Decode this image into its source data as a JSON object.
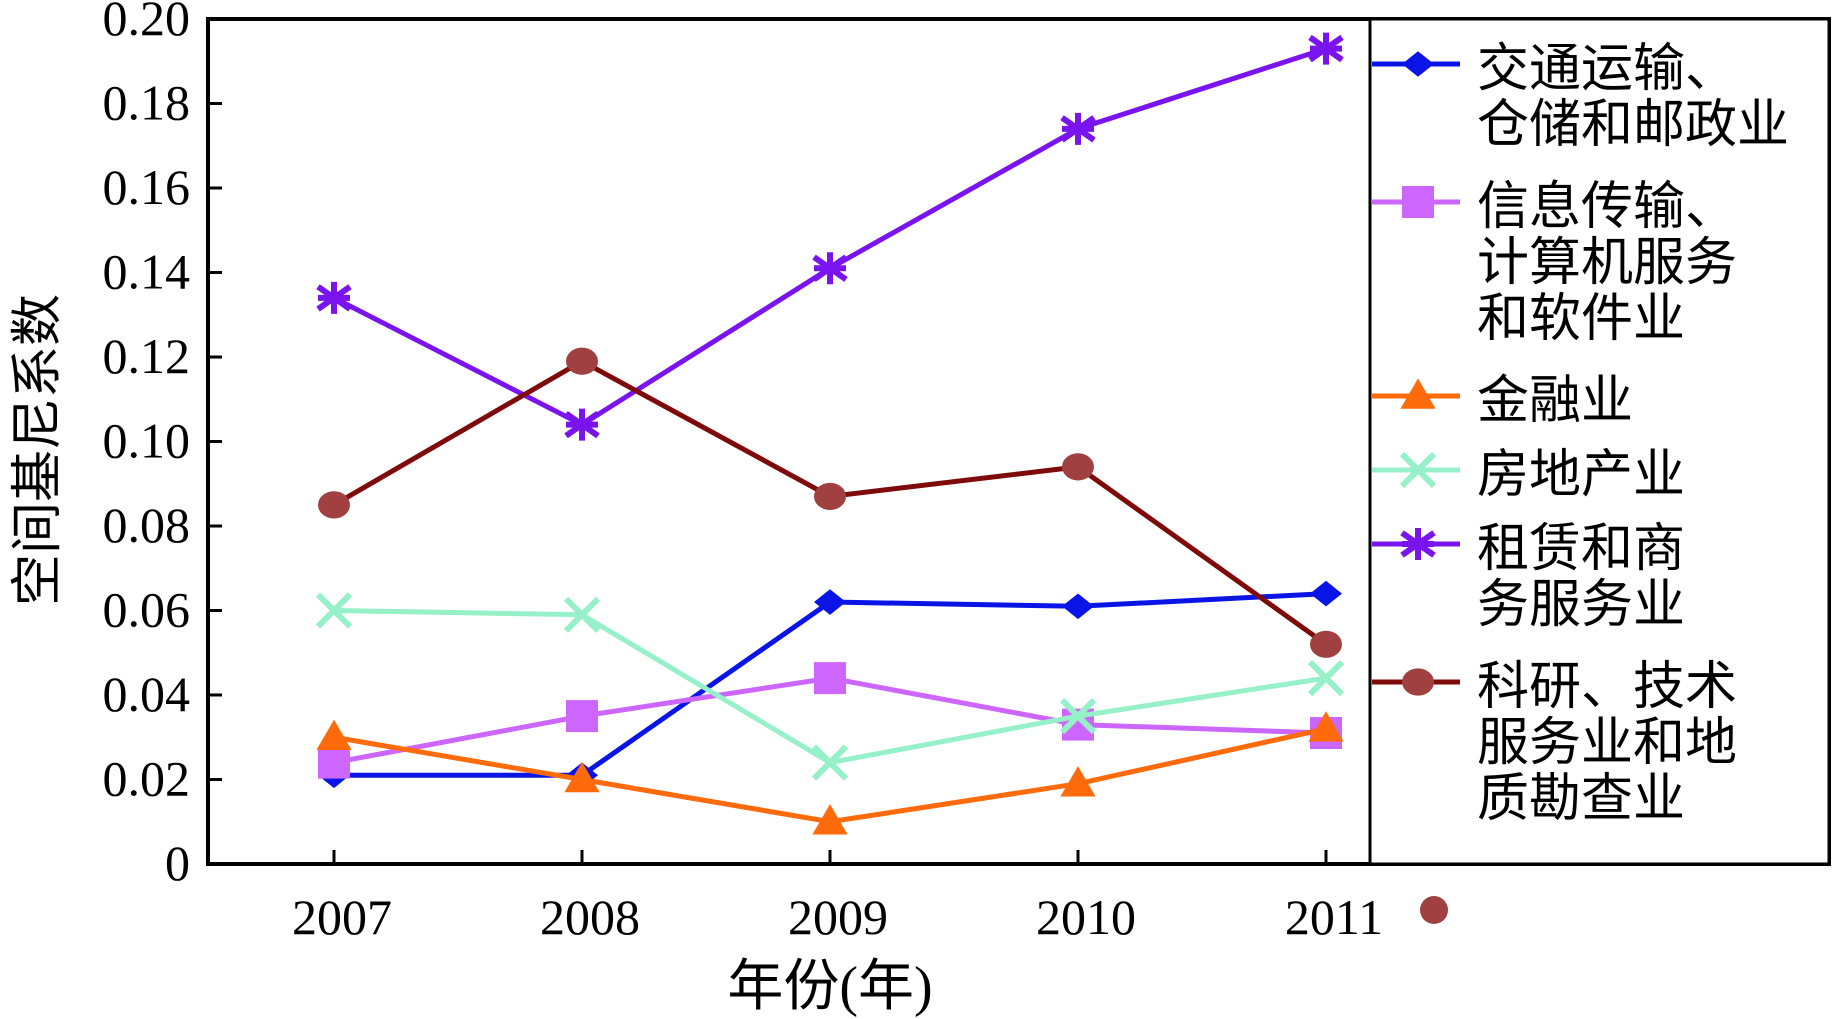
{
  "chart_data": {
    "type": "line",
    "title": "",
    "xlabel": "年份(年)",
    "ylabel": "空间基尼系数",
    "x": [
      "2007",
      "2008",
      "2009",
      "2010",
      "2011"
    ],
    "ylim": [
      0,
      0.2
    ],
    "yticks": [
      "0",
      "0.02",
      "0.04",
      "0.06",
      "0.08",
      "0.10",
      "0.12",
      "0.14",
      "0.16",
      "0.18",
      "0.20"
    ],
    "grid": false,
    "legend_position": "right",
    "series": [
      {
        "name": "交通运输、仓储和邮政业",
        "lines": [
          "交通运输、",
          "仓储和邮政业"
        ],
        "color": "#0a14e6",
        "marker": "diamond",
        "values": [
          0.021,
          0.021,
          0.062,
          0.061,
          0.064
        ]
      },
      {
        "name": "信息传输、计算机服务和软件业",
        "lines": [
          "信息传输、",
          "计算机服务",
          "和软件业"
        ],
        "color": "#cc66ff",
        "marker": "square",
        "values": [
          0.024,
          0.035,
          0.044,
          0.033,
          0.031
        ]
      },
      {
        "name": "金融业",
        "lines": [
          "金融业"
        ],
        "color": "#ff6a0a",
        "marker": "triangle",
        "values": [
          0.03,
          0.02,
          0.01,
          0.019,
          0.032
        ]
      },
      {
        "name": "房地产业",
        "lines": [
          "房地产业"
        ],
        "color": "#96f0c8",
        "marker": "x",
        "values": [
          0.06,
          0.059,
          0.024,
          0.035,
          0.044
        ]
      },
      {
        "name": "租赁和商务服务业",
        "lines": [
          "租赁和商",
          "务服务业"
        ],
        "color": "#7a14ee",
        "marker": "star",
        "values": [
          0.134,
          0.104,
          0.141,
          0.174,
          0.193
        ]
      },
      {
        "name": "科研、技术服务业和地质勘查业",
        "lines": [
          "科研、技术",
          "服务业和地",
          "质勘查业"
        ],
        "color": "#7e0a0a",
        "markerColor": "#a04040",
        "marker": "circle",
        "values": [
          0.085,
          0.119,
          0.087,
          0.094,
          0.052
        ]
      }
    ]
  }
}
